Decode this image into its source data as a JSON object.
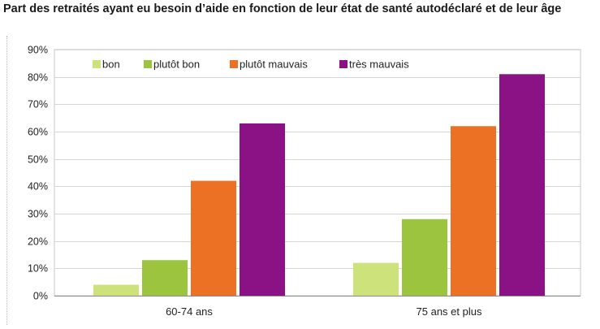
{
  "chart_data": {
    "type": "bar",
    "title": "Part des retraités ayant eu besoin d’aide en fonction de leur état de santé autodéclaré et de leur âge",
    "xlabel": "",
    "ylabel": "",
    "categories": [
      "60-74 ans",
      "75 ans et plus"
    ],
    "series": [
      {
        "name": "bon",
        "color": "#cde27a",
        "values": [
          4,
          12
        ]
      },
      {
        "name": "plutôt bon",
        "color": "#9dc43f",
        "values": [
          13,
          28
        ]
      },
      {
        "name": "plutôt mauvais",
        "color": "#ec7124",
        "values": [
          42,
          62
        ]
      },
      {
        "name": "très mauvais",
        "color": "#8b1284",
        "values": [
          63,
          81
        ]
      }
    ],
    "ylim": [
      0,
      90
    ],
    "yticks": [
      0,
      10,
      20,
      30,
      40,
      50,
      60,
      70,
      80,
      90
    ],
    "ytick_labels": [
      "0%",
      "10%",
      "20%",
      "30%",
      "40%",
      "50%",
      "60%",
      "70%",
      "80%",
      "90%"
    ],
    "grid": true,
    "legend_position": "top-left inside plot"
  }
}
